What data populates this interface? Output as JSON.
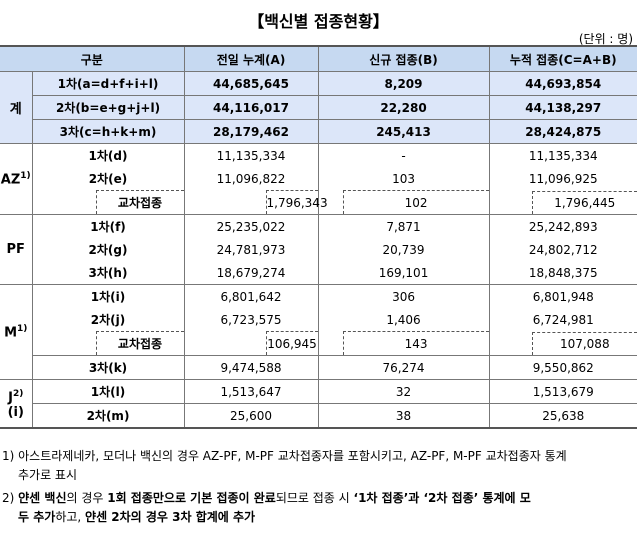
{
  "title": "【백신별 접종현황】",
  "unit": "(단위 : 명)",
  "headers": [
    "구분",
    "전일 누계(A)",
    "신규 접종(B)",
    "누적 접종(C=A+B)"
  ],
  "sum": {
    "label": "계",
    "rows": [
      {
        "label": "1차(a=d+f+i+l)",
        "prev": "44,685,645",
        "new": "8,209",
        "total": "44,693,854"
      },
      {
        "label": "2차(b=e+g+j+l)",
        "prev": "44,116,017",
        "new": "22,280",
        "total": "44,138,297"
      },
      {
        "label": "3차(c=h+k+m)",
        "prev": "28,179,462",
        "new": "245,413",
        "total": "28,424,875"
      }
    ]
  },
  "az": {
    "label": "AZ",
    "sup": "1)",
    "rows": [
      {
        "label": "1차(d)",
        "prev": "11,135,334",
        "new": "-",
        "total": "11,135,334"
      },
      {
        "label": "2차(e)",
        "prev": "11,096,822",
        "new": "103",
        "total": "11,096,925"
      }
    ],
    "cross": {
      "label": "교차접종",
      "prev": "1,796,343",
      "new": "102",
      "total": "1,796,445"
    }
  },
  "pf": {
    "label": "PF",
    "rows": [
      {
        "label": "1차(f)",
        "prev": "25,235,022",
        "new": "7,871",
        "total": "25,242,893"
      },
      {
        "label": "2차(g)",
        "prev": "24,781,973",
        "new": "20,739",
        "total": "24,802,712"
      },
      {
        "label": "3차(h)",
        "prev": "18,679,274",
        "new": "169,101",
        "total": "18,848,375"
      }
    ]
  },
  "m": {
    "label": "M",
    "sup": "1)",
    "rows": [
      {
        "label": "1차(i)",
        "prev": "6,801,642",
        "new": "306",
        "total": "6,801,948"
      },
      {
        "label": "2차(j)",
        "prev": "6,723,575",
        "new": "1,406",
        "total": "6,724,981"
      }
    ],
    "cross": {
      "label": "교차접종",
      "prev": "106,945",
      "new": "143",
      "total": "107,088"
    },
    "row3": {
      "label": "3차(k)",
      "prev": "9,474,588",
      "new": "76,274",
      "total": "9,550,862"
    }
  },
  "j": {
    "label": "J",
    "sup": "2)",
    "label2": "(i)",
    "rows": [
      {
        "label": "1차(l)",
        "prev": "1,513,647",
        "new": "32",
        "total": "1,513,679"
      },
      {
        "label": "2차(m)",
        "prev": "25,600",
        "new": "38",
        "total": "25,638"
      }
    ]
  },
  "notes": {
    "n1_line1": "1) 아스트라제네카, 모더나 백신의 경우 AZ-PF, M-PF 교차접종자를 포함시키고, AZ-PF, M-PF 교차접종자 통계",
    "n1_line2": "추가로 표시",
    "n2_a": "2) ",
    "n2_b": "얀센 백신",
    "n2_c": "의 경우 ",
    "n2_d": "1회 접종만으로 기본 접종이 완료",
    "n2_e": "되므로 접종 시 ",
    "n2_f": "‘1차 접종’과 ‘2차 접종’ 통계에 모",
    "n2_line2_a": "두 추가",
    "n2_line2_b": "하고, ",
    "n2_line2_c": "얀센 2차의 경우 3차 합계에 추가"
  }
}
